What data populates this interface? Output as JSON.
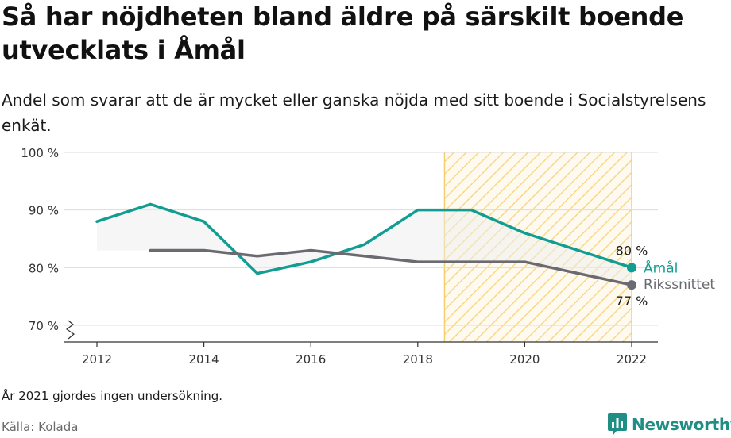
{
  "header": {
    "title": "Så har nöjdheten bland äldre på särskilt boende utvecklats i Åmål",
    "subtitle": "Andel som svarar att de är mycket eller ganska nöjda med sitt boende i Socialstyrelsens enkät."
  },
  "footer": {
    "note": "År 2021 gjordes ingen undersökning.",
    "source": "Källa: Kolada",
    "brand": "Newsworthy"
  },
  "chart_data": {
    "type": "line",
    "x_ticks": [
      "2012",
      "2014",
      "2016",
      "2018",
      "2020",
      "2022"
    ],
    "y_ticks": [
      "100 %",
      "90 %",
      "80 %",
      "70 %"
    ],
    "y_tick_values": [
      100,
      90,
      80,
      70
    ],
    "xlim": [
      2011.7,
      2022.5
    ],
    "ylim": [
      68,
      100
    ],
    "highlight_range": [
      2018.5,
      2022
    ],
    "series": [
      {
        "name": "Åmål",
        "color": "#129d92",
        "x": [
          2012,
          2013,
          2014,
          2015,
          2016,
          2017,
          2018,
          2019,
          2020,
          2022
        ],
        "y": [
          88,
          91,
          88,
          79,
          81,
          84,
          90,
          90,
          86,
          80
        ],
        "end_label": "80 %"
      },
      {
        "name": "Rikssnittet",
        "color": "#6b6a70",
        "x": [
          2013,
          2014,
          2015,
          2016,
          2017,
          2018,
          2019,
          2020,
          2022
        ],
        "y": [
          83,
          83,
          82,
          83,
          82,
          81,
          81,
          81,
          77
        ],
        "end_label": "77 %"
      }
    ]
  }
}
